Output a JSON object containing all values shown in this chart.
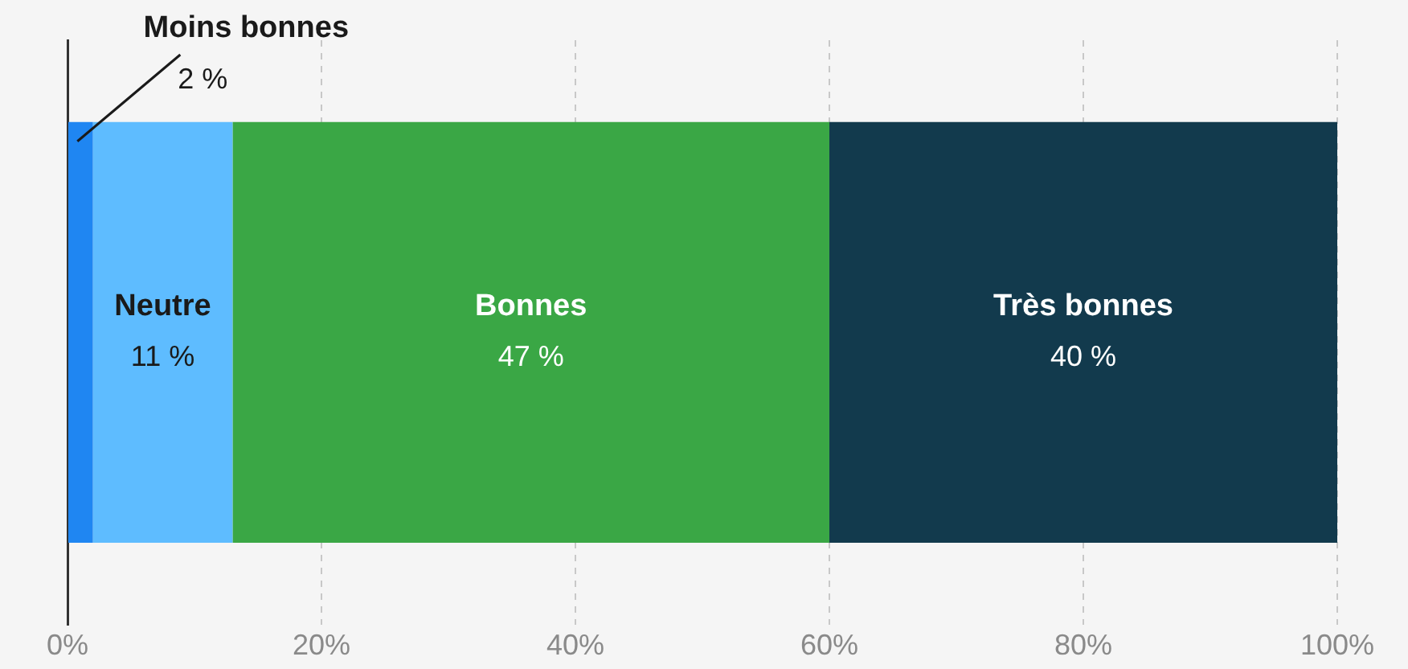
{
  "chart_data": {
    "type": "bar",
    "orientation": "horizontal",
    "stacked": true,
    "categories": [
      null
    ],
    "series": [
      {
        "name": "Moins bonnes",
        "color": "#1f86f2",
        "values": [
          2
        ],
        "value_labels": [
          "2 %"
        ]
      },
      {
        "name": "Neutre",
        "color": "#5ebcff",
        "values": [
          11
        ],
        "value_labels": [
          "11 %"
        ]
      },
      {
        "name": "Bonnes",
        "color": "#3aa745",
        "values": [
          47
        ],
        "value_labels": [
          "47 %"
        ]
      },
      {
        "name": "Très bonnes",
        "color": "#123a4d",
        "values": [
          40
        ],
        "value_labels": [
          "40 %"
        ]
      }
    ],
    "xlim": [
      0,
      100
    ],
    "xticks": [
      {
        "value": 0,
        "label": "0%"
      },
      {
        "value": 20,
        "label": "20%"
      },
      {
        "value": 40,
        "label": "40%"
      },
      {
        "value": 60,
        "label": "60%"
      },
      {
        "value": 80,
        "label": "80%"
      },
      {
        "value": 100,
        "label": "100%"
      }
    ],
    "grid": "x",
    "legend": false
  }
}
